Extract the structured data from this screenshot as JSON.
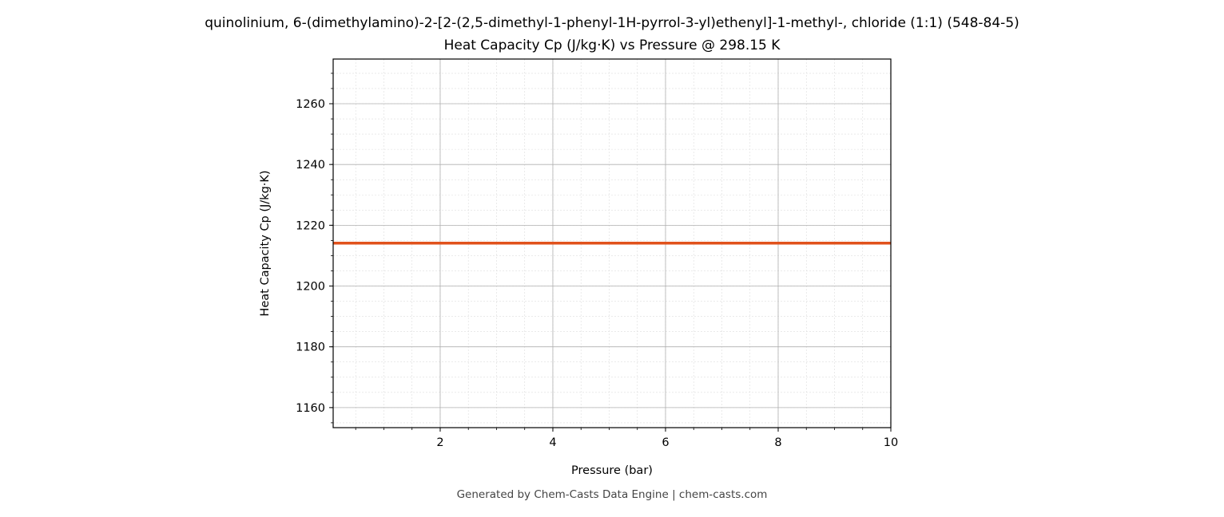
{
  "chart_data": {
    "type": "line",
    "title": "quinolinium, 6-(dimethylamino)-2-[2-(2,5-dimethyl-1-phenyl-1H-pyrrol-3-yl)ethenyl]-1-methyl-, chloride (1:1) (548-84-5)",
    "subtitle": "Heat Capacity Cp (J/kg·K) vs Pressure @ 298.15 K",
    "xlabel": "Pressure (bar)",
    "ylabel": "Heat Capacity Cp (J/kg·K)",
    "xlim": [
      0.1,
      10
    ],
    "ylim": [
      1153.4,
      1274.7
    ],
    "xticks": [
      2,
      4,
      6,
      8,
      10
    ],
    "yticks": [
      1160,
      1180,
      1200,
      1220,
      1240,
      1260
    ],
    "grid": true,
    "series": [
      {
        "name": "Cp",
        "color": "#e0521c",
        "x": [
          0.1,
          10
        ],
        "y": [
          1214.1,
          1214.1
        ]
      }
    ]
  },
  "footer": "Generated by Chem-Casts Data Engine | chem-casts.com"
}
